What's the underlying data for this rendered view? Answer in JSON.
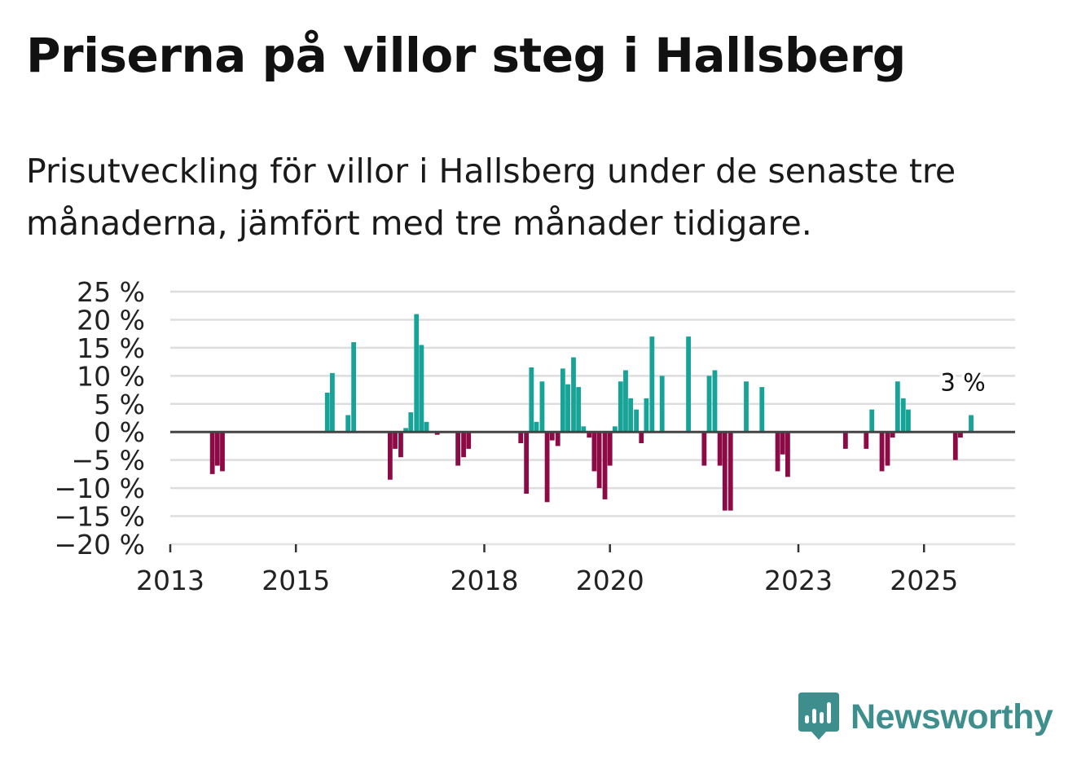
{
  "header": {
    "title": "Priserna på villor steg i Hallsberg",
    "subtitle": "Prisutveckling för villor i Hallsberg under de senaste tre månaderna, jämfört med tre månader tidigare."
  },
  "brand": {
    "name": "Newsworthy"
  },
  "colors": {
    "positive": "#17a398",
    "negative": "#8c0a45",
    "grid": "#dddddd",
    "zero": "#444444",
    "brand": "#3f8e8e"
  },
  "chart_data": {
    "type": "bar",
    "title": "Priserna på villor steg i Hallsberg",
    "xlabel": "",
    "ylabel": "",
    "ylim": [
      -20,
      25
    ],
    "y_ticks": [
      25,
      20,
      15,
      10,
      5,
      0,
      -5,
      -10,
      -15,
      -20
    ],
    "y_tick_labels": [
      "25 %",
      "20 %",
      "15 %",
      "10 %",
      "5 %",
      "0 %",
      "−5 %",
      "−10 %",
      "−15 %",
      "−20 %"
    ],
    "x_range": [
      2013.0,
      2026.45
    ],
    "x_ticks": [
      2013,
      2015,
      2018,
      2020,
      2023,
      2025
    ],
    "x_tick_labels": [
      "2013",
      "2015",
      "2018",
      "2020",
      "2023",
      "2025"
    ],
    "unit": "%",
    "series": [
      {
        "name": "Prisutveckling",
        "points": [
          {
            "x": 2013.67,
            "value": -7.5
          },
          {
            "x": 2013.75,
            "value": -6.0
          },
          {
            "x": 2013.83,
            "value": -7.0
          },
          {
            "x": 2015.5,
            "value": 7.0
          },
          {
            "x": 2015.58,
            "value": 10.5
          },
          {
            "x": 2015.83,
            "value": 3.0
          },
          {
            "x": 2015.92,
            "value": 16.0
          },
          {
            "x": 2016.5,
            "value": -8.5
          },
          {
            "x": 2016.58,
            "value": -3.0
          },
          {
            "x": 2016.67,
            "value": -4.5
          },
          {
            "x": 2016.75,
            "value": 0.7
          },
          {
            "x": 2016.83,
            "value": 3.5
          },
          {
            "x": 2016.92,
            "value": 21.0
          },
          {
            "x": 2017.0,
            "value": 15.5
          },
          {
            "x": 2017.08,
            "value": 1.8
          },
          {
            "x": 2017.25,
            "value": -0.5
          },
          {
            "x": 2017.58,
            "value": -6.0
          },
          {
            "x": 2017.67,
            "value": -4.5
          },
          {
            "x": 2017.75,
            "value": -3.0
          },
          {
            "x": 2018.58,
            "value": -2.0
          },
          {
            "x": 2018.67,
            "value": -11.0
          },
          {
            "x": 2018.75,
            "value": 11.5
          },
          {
            "x": 2018.83,
            "value": 1.8
          },
          {
            "x": 2018.92,
            "value": 9.0
          },
          {
            "x": 2019.0,
            "value": -12.5
          },
          {
            "x": 2019.08,
            "value": -1.5
          },
          {
            "x": 2019.17,
            "value": -2.5
          },
          {
            "x": 2019.25,
            "value": 11.3
          },
          {
            "x": 2019.33,
            "value": 8.5
          },
          {
            "x": 2019.42,
            "value": 13.3
          },
          {
            "x": 2019.5,
            "value": 8.0
          },
          {
            "x": 2019.58,
            "value": 1.0
          },
          {
            "x": 2019.67,
            "value": -1.0
          },
          {
            "x": 2019.75,
            "value": -7.0
          },
          {
            "x": 2019.83,
            "value": -10.0
          },
          {
            "x": 2019.92,
            "value": -12.0
          },
          {
            "x": 2020.0,
            "value": -6.0
          },
          {
            "x": 2020.08,
            "value": 1.0
          },
          {
            "x": 2020.17,
            "value": 9.0
          },
          {
            "x": 2020.25,
            "value": 11.0
          },
          {
            "x": 2020.33,
            "value": 6.0
          },
          {
            "x": 2020.42,
            "value": 4.0
          },
          {
            "x": 2020.5,
            "value": -2.0
          },
          {
            "x": 2020.58,
            "value": 6.0
          },
          {
            "x": 2020.67,
            "value": 17.0
          },
          {
            "x": 2020.83,
            "value": 10.0
          },
          {
            "x": 2021.25,
            "value": 17.0
          },
          {
            "x": 2021.5,
            "value": -6.0
          },
          {
            "x": 2021.58,
            "value": 10.0
          },
          {
            "x": 2021.67,
            "value": 11.0
          },
          {
            "x": 2021.75,
            "value": -6.0
          },
          {
            "x": 2021.83,
            "value": -14.0
          },
          {
            "x": 2021.92,
            "value": -14.0
          },
          {
            "x": 2022.17,
            "value": 9.0
          },
          {
            "x": 2022.42,
            "value": 8.0
          },
          {
            "x": 2022.67,
            "value": -7.0
          },
          {
            "x": 2022.75,
            "value": -4.0
          },
          {
            "x": 2022.83,
            "value": -8.0
          },
          {
            "x": 2023.75,
            "value": -3.0
          },
          {
            "x": 2024.08,
            "value": -3.0
          },
          {
            "x": 2024.17,
            "value": 4.0
          },
          {
            "x": 2024.33,
            "value": -7.0
          },
          {
            "x": 2024.42,
            "value": -6.0
          },
          {
            "x": 2024.5,
            "value": -1.0
          },
          {
            "x": 2024.58,
            "value": 9.0
          },
          {
            "x": 2024.67,
            "value": 6.0
          },
          {
            "x": 2024.75,
            "value": 4.0
          },
          {
            "x": 2025.5,
            "value": -5.0
          },
          {
            "x": 2025.58,
            "value": -1.0
          },
          {
            "x": 2025.75,
            "value": 3.0
          }
        ]
      }
    ],
    "annotations": [
      {
        "x": 2025.75,
        "value": 3,
        "text": "3 %"
      }
    ]
  }
}
